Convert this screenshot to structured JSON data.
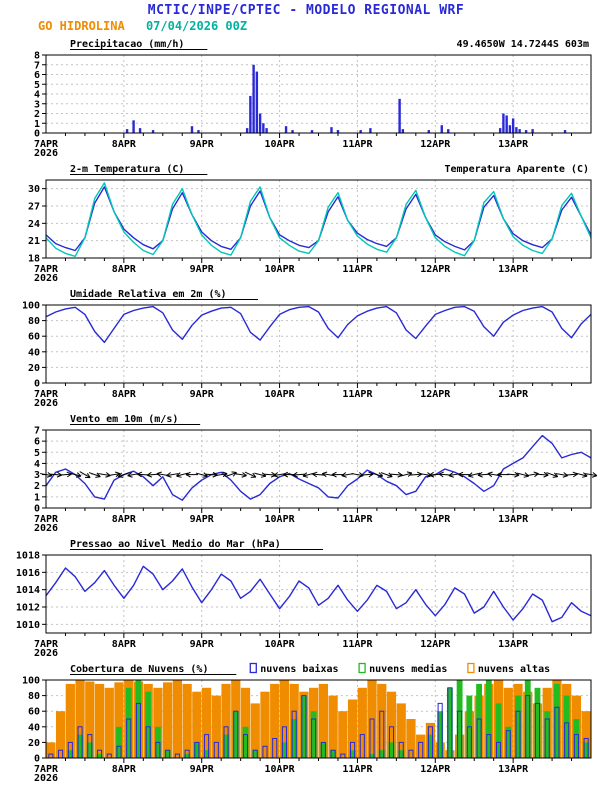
{
  "header": {
    "title": "MCTIC/INPE/CPTEC - MODELO REGIONAL WRF",
    "station": "GO HIDROLINA",
    "run": "07/04/2026 00Z",
    "location": "49.4650W 14.7244S 603m",
    "colors": {
      "title": "#2929d6",
      "station": "#f08c00",
      "run": "#00b2a0",
      "location": "#f08c00"
    }
  },
  "axis": {
    "x_ticks": [
      "7APR",
      "8APR",
      "9APR",
      "10APR",
      "11APR",
      "12APR",
      "13APR"
    ],
    "x_year": "2026",
    "hours_span": 168
  },
  "chart_data": [
    {
      "id": "precipitation",
      "type": "bar",
      "title": "Precipitacao (mm/h)",
      "ylim": [
        0,
        8
      ],
      "yticks": [
        0,
        1,
        2,
        3,
        4,
        5,
        6,
        7,
        8
      ],
      "color": "#2929d6",
      "points": [
        [
          25,
          0.4
        ],
        [
          27,
          1.3
        ],
        [
          29,
          0.5
        ],
        [
          33,
          0.3
        ],
        [
          45,
          0.7
        ],
        [
          47,
          0.3
        ],
        [
          62,
          0.5
        ],
        [
          63,
          3.8
        ],
        [
          64,
          7.0
        ],
        [
          65,
          6.3
        ],
        [
          66,
          2.0
        ],
        [
          67,
          1.0
        ],
        [
          68,
          0.5
        ],
        [
          74,
          0.7
        ],
        [
          76,
          0.3
        ],
        [
          82,
          0.3
        ],
        [
          88,
          0.6
        ],
        [
          90,
          0.3
        ],
        [
          97,
          0.3
        ],
        [
          100,
          0.5
        ],
        [
          109,
          3.5
        ],
        [
          110,
          0.4
        ],
        [
          118,
          0.3
        ],
        [
          122,
          0.8
        ],
        [
          124,
          0.4
        ],
        [
          140,
          0.5
        ],
        [
          141,
          2.0
        ],
        [
          142,
          1.8
        ],
        [
          143,
          0.8
        ],
        [
          144,
          1.5
        ],
        [
          145,
          0.6
        ],
        [
          146,
          0.4
        ],
        [
          148,
          0.3
        ],
        [
          150,
          0.4
        ],
        [
          160,
          0.3
        ]
      ]
    },
    {
      "id": "temperature",
      "type": "line",
      "title": "2-m Temperatura (C)",
      "right_label": "Temperatura Aparente (C)",
      "right_label_color": "#00c8b4",
      "ylim": [
        18,
        31.5
      ],
      "yticks": [
        18,
        21,
        24,
        27,
        30
      ],
      "x_step_hours": 3,
      "series": [
        {
          "name": "2-m Temperatura (C)",
          "color": "#2929d6",
          "values": [
            22.0,
            20.5,
            19.8,
            19.3,
            21.5,
            27.5,
            30.3,
            26.0,
            23.0,
            21.5,
            20.3,
            19.6,
            21.0,
            26.5,
            29.3,
            25.5,
            22.5,
            21.0,
            20.0,
            19.5,
            21.5,
            27.0,
            29.6,
            25.0,
            22.0,
            21.0,
            20.2,
            19.8,
            21.0,
            26.0,
            28.6,
            24.5,
            22.3,
            21.2,
            20.5,
            20.0,
            21.5,
            26.5,
            29.0,
            25.0,
            22.0,
            20.8,
            20.0,
            19.4,
            21.0,
            26.8,
            28.8,
            24.8,
            22.2,
            21.0,
            20.3,
            19.8,
            21.3,
            26.3,
            28.5,
            25.2,
            22.0
          ]
        },
        {
          "name": "Temperatura Aparente (C)",
          "color": "#00c8b4",
          "values": [
            21.5,
            19.7,
            18.8,
            18.3,
            21.5,
            28.3,
            31.0,
            26.0,
            22.5,
            20.7,
            19.3,
            18.6,
            21.0,
            27.3,
            30.0,
            25.5,
            22.0,
            20.2,
            19.0,
            18.5,
            21.5,
            27.8,
            30.3,
            25.0,
            21.5,
            20.2,
            19.2,
            18.8,
            21.0,
            26.8,
            29.3,
            24.5,
            21.8,
            20.4,
            19.5,
            19.0,
            21.5,
            27.3,
            29.7,
            25.0,
            21.5,
            20.0,
            19.0,
            18.4,
            21.0,
            27.6,
            29.5,
            24.8,
            21.7,
            20.2,
            19.3,
            18.8,
            21.3,
            27.1,
            29.2,
            25.2,
            21.5
          ]
        }
      ]
    },
    {
      "id": "humidity",
      "type": "line",
      "title": "Umidade Relativa em 2m (%)",
      "ylim": [
        0,
        100
      ],
      "yticks": [
        0,
        20,
        40,
        60,
        80,
        100
      ],
      "x_step_hours": 3,
      "series": [
        {
          "name": "Umidade Relativa em 2m",
          "color": "#2929d6",
          "values": [
            85,
            91,
            95,
            97,
            88,
            66,
            52,
            70,
            88,
            93,
            96,
            98,
            90,
            68,
            56,
            74,
            87,
            92,
            96,
            97,
            89,
            65,
            55,
            72,
            88,
            94,
            97,
            98,
            91,
            70,
            58,
            75,
            86,
            92,
            96,
            98,
            90,
            68,
            57,
            73,
            88,
            93,
            97,
            98,
            92,
            72,
            60,
            78,
            87,
            93,
            96,
            98,
            91,
            70,
            58,
            76,
            88
          ]
        }
      ]
    },
    {
      "id": "wind",
      "type": "line",
      "title": "Vento em 10m (m/s)",
      "ylim": [
        0,
        7
      ],
      "yticks": [
        0,
        1,
        2,
        3,
        4,
        5,
        6,
        7
      ],
      "x_step_hours": 3,
      "series": [
        {
          "name": "Vento em 10m",
          "color": "#2929d6",
          "values": [
            2.0,
            3.2,
            3.5,
            3.0,
            2.2,
            1.0,
            0.8,
            2.5,
            3.0,
            3.3,
            2.8,
            2.0,
            2.8,
            1.2,
            0.7,
            1.8,
            2.5,
            3.0,
            3.2,
            2.5,
            1.5,
            0.8,
            1.2,
            2.2,
            2.8,
            3.1,
            2.6,
            2.2,
            1.8,
            1.0,
            0.9,
            2.0,
            2.6,
            3.4,
            3.0,
            2.4,
            2.0,
            1.2,
            1.5,
            2.8,
            3.0,
            3.5,
            3.2,
            2.8,
            2.2,
            1.5,
            2.0,
            3.5,
            4.0,
            4.5,
            5.5,
            6.5,
            5.8,
            4.5,
            4.8,
            5.0,
            4.5
          ]
        }
      ],
      "barbs": {
        "y_value": 3,
        "dirs": [
          10,
          5,
          -5,
          15,
          30,
          20,
          10,
          -10,
          160,
          170,
          185,
          175,
          190,
          170,
          165,
          180,
          15,
          5,
          -10,
          -20,
          10,
          25,
          15,
          5,
          170,
          180,
          175,
          165,
          185,
          190,
          180,
          170,
          10,
          -5,
          15,
          20,
          5,
          -15,
          -5,
          10,
          175,
          185,
          170,
          180,
          165,
          175,
          190,
          180,
          5,
          15,
          -10,
          5,
          20,
          10,
          -5,
          15,
          10
        ]
      }
    },
    {
      "id": "pressure",
      "type": "line",
      "title": "Pressao ao Nivel Medio do Mar (hPa)",
      "ylim": [
        1009,
        1018
      ],
      "yticks": [
        1010,
        1012,
        1014,
        1016,
        1018
      ],
      "x_step_hours": 3,
      "series": [
        {
          "name": "Pressao ao Nivel Medio do Mar",
          "color": "#2929d6",
          "values": [
            1013.3,
            1014.8,
            1016.5,
            1015.5,
            1013.8,
            1014.8,
            1016.2,
            1014.5,
            1013.0,
            1014.5,
            1016.7,
            1015.8,
            1014.0,
            1015.0,
            1016.4,
            1014.3,
            1012.5,
            1014.0,
            1015.8,
            1015.0,
            1013.0,
            1013.8,
            1015.2,
            1013.5,
            1011.8,
            1013.2,
            1015.0,
            1014.2,
            1012.2,
            1013.0,
            1014.5,
            1012.8,
            1011.5,
            1012.8,
            1014.5,
            1013.8,
            1011.8,
            1012.5,
            1014.0,
            1012.3,
            1011.0,
            1012.3,
            1014.2,
            1013.5,
            1011.3,
            1012.0,
            1013.8,
            1012.0,
            1010.5,
            1011.8,
            1013.5,
            1012.8,
            1010.3,
            1010.8,
            1012.5,
            1011.5,
            1011.0
          ]
        }
      ]
    },
    {
      "id": "clouds",
      "type": "bar-multi",
      "title": "Cobertura de Nuvens (%)",
      "ylim": [
        0,
        100
      ],
      "yticks": [
        0,
        20,
        40,
        60,
        80,
        100
      ],
      "x_step_hours": 3,
      "legend": [
        {
          "label": "nuvens baixas",
          "color": "#2929d6"
        },
        {
          "label": "nuvens medias",
          "color": "#22bb22"
        },
        {
          "label": "nuvens altas",
          "color": "#f08c00"
        }
      ],
      "series": [
        {
          "name": "nuvens altas",
          "color": "#f08c00",
          "style": "fill",
          "width_frac": 0.95,
          "values": [
            20,
            60,
            95,
            100,
            98,
            95,
            90,
            97,
            100,
            98,
            95,
            90,
            97,
            100,
            95,
            85,
            90,
            80,
            95,
            100,
            90,
            70,
            85,
            95,
            100,
            95,
            85,
            90,
            95,
            80,
            60,
            75,
            90,
            100,
            95,
            85,
            70,
            50,
            30,
            45,
            20,
            10,
            30,
            60,
            80,
            95,
            100,
            90,
            95,
            85,
            70,
            90,
            100,
            95,
            80,
            60,
            40
          ]
        },
        {
          "name": "nuvens medias",
          "color": "#22bb22",
          "style": "fill",
          "width_frac": 0.6,
          "values": [
            0,
            0,
            10,
            30,
            20,
            5,
            0,
            40,
            90,
            100,
            85,
            40,
            10,
            0,
            5,
            20,
            10,
            0,
            30,
            60,
            40,
            10,
            0,
            0,
            20,
            50,
            80,
            60,
            20,
            10,
            0,
            10,
            0,
            5,
            10,
            20,
            10,
            0,
            0,
            30,
            60,
            90,
            100,
            80,
            95,
            100,
            70,
            40,
            80,
            100,
            90,
            60,
            95,
            80,
            50,
            20,
            10
          ]
        },
        {
          "name": "nuvens baixas",
          "color": "#2929d6",
          "style": "outline",
          "width_frac": 0.42,
          "values": [
            5,
            10,
            20,
            40,
            30,
            10,
            5,
            15,
            50,
            70,
            40,
            20,
            10,
            5,
            10,
            20,
            30,
            20,
            40,
            60,
            30,
            10,
            15,
            25,
            40,
            60,
            80,
            50,
            20,
            10,
            5,
            20,
            30,
            50,
            60,
            40,
            20,
            10,
            20,
            40,
            70,
            90,
            60,
            40,
            50,
            30,
            20,
            35,
            60,
            80,
            70,
            50,
            65,
            45,
            30,
            25,
            20
          ]
        }
      ]
    }
  ]
}
